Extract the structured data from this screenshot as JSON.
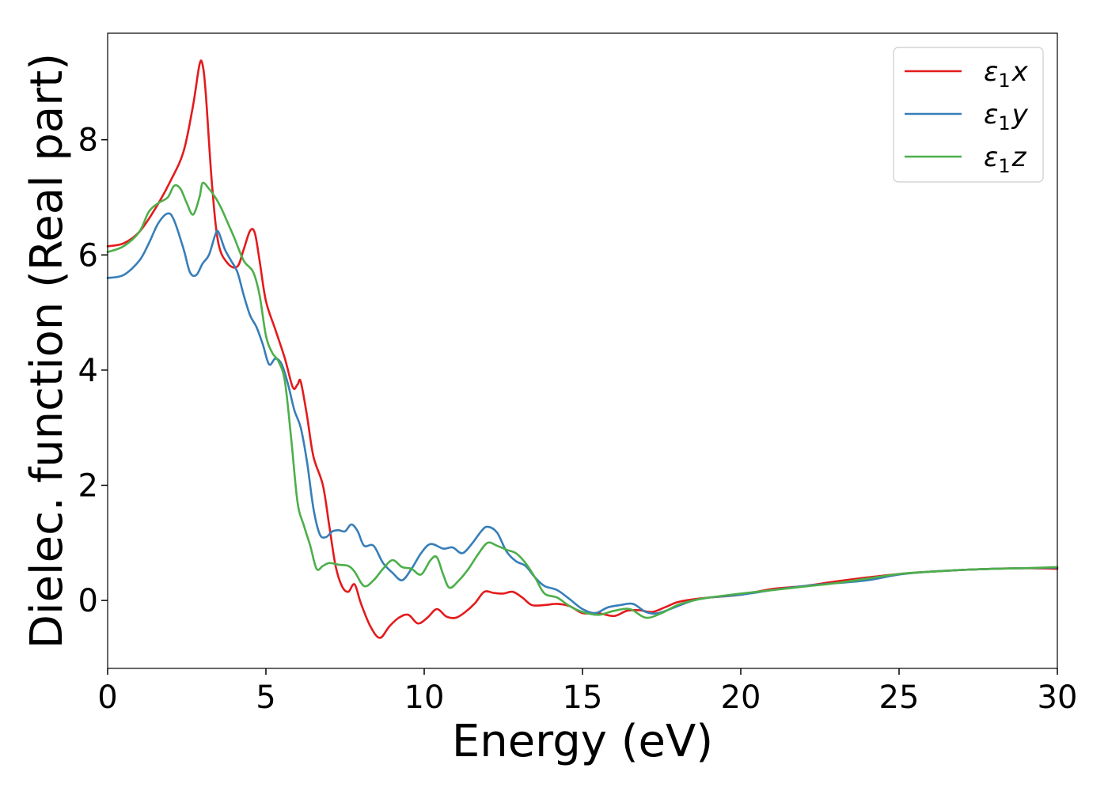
{
  "chart_data": {
    "type": "line",
    "xlabel": "Energy (eV)",
    "ylabel": "Dielec. function (Real part)",
    "xlim": [
      0,
      30
    ],
    "ylim": [
      -1.18,
      9.85
    ],
    "xticks": [
      0,
      5,
      10,
      15,
      20,
      25,
      30
    ],
    "yticks": [
      0,
      2,
      4,
      6,
      8
    ],
    "grid": false,
    "legend_position": "top-right",
    "series": [
      {
        "name": "ε1x",
        "legend_base": "ε",
        "legend_sub": "1",
        "legend_suffix": "x",
        "color": "#e41a1c",
        "points": [
          [
            0,
            6.15
          ],
          [
            0.5,
            6.2
          ],
          [
            1,
            6.4
          ],
          [
            1.5,
            6.8
          ],
          [
            2,
            7.3
          ],
          [
            2.4,
            7.8
          ],
          [
            2.7,
            8.6
          ],
          [
            2.9,
            9.3
          ],
          [
            3.0,
            9.3
          ],
          [
            3.1,
            8.8
          ],
          [
            3.3,
            7.2
          ],
          [
            3.5,
            6.2
          ],
          [
            3.8,
            5.85
          ],
          [
            4.1,
            5.8
          ],
          [
            4.3,
            6.1
          ],
          [
            4.5,
            6.42
          ],
          [
            4.65,
            6.38
          ],
          [
            4.8,
            5.9
          ],
          [
            5.0,
            5.2
          ],
          [
            5.3,
            4.7
          ],
          [
            5.6,
            4.2
          ],
          [
            5.85,
            3.7
          ],
          [
            6.0,
            3.75
          ],
          [
            6.1,
            3.8
          ],
          [
            6.3,
            3.2
          ],
          [
            6.5,
            2.5
          ],
          [
            6.8,
            2.0
          ],
          [
            7.0,
            1.3
          ],
          [
            7.2,
            0.6
          ],
          [
            7.4,
            0.25
          ],
          [
            7.6,
            0.15
          ],
          [
            7.8,
            0.28
          ],
          [
            8.0,
            -0.05
          ],
          [
            8.3,
            -0.45
          ],
          [
            8.6,
            -0.65
          ],
          [
            8.9,
            -0.45
          ],
          [
            9.2,
            -0.3
          ],
          [
            9.5,
            -0.25
          ],
          [
            9.8,
            -0.4
          ],
          [
            10.1,
            -0.3
          ],
          [
            10.4,
            -0.15
          ],
          [
            10.7,
            -0.28
          ],
          [
            11.0,
            -0.3
          ],
          [
            11.3,
            -0.2
          ],
          [
            11.6,
            -0.05
          ],
          [
            11.9,
            0.15
          ],
          [
            12.2,
            0.13
          ],
          [
            12.5,
            0.12
          ],
          [
            12.8,
            0.15
          ],
          [
            13.1,
            0.05
          ],
          [
            13.4,
            -0.08
          ],
          [
            13.8,
            -0.08
          ],
          [
            14.2,
            -0.06
          ],
          [
            14.6,
            -0.1
          ],
          [
            15.0,
            -0.22
          ],
          [
            15.5,
            -0.22
          ],
          [
            16.0,
            -0.27
          ],
          [
            16.4,
            -0.18
          ],
          [
            16.8,
            -0.17
          ],
          [
            17.2,
            -0.2
          ],
          [
            17.6,
            -0.12
          ],
          [
            18.0,
            -0.03
          ],
          [
            18.5,
            0.02
          ],
          [
            19,
            0.05
          ],
          [
            20,
            0.1
          ],
          [
            21,
            0.2
          ],
          [
            22,
            0.25
          ],
          [
            23,
            0.33
          ],
          [
            24,
            0.4
          ],
          [
            25,
            0.46
          ],
          [
            26,
            0.5
          ],
          [
            27,
            0.53
          ],
          [
            28,
            0.55
          ],
          [
            29,
            0.56
          ],
          [
            30,
            0.55
          ]
        ]
      },
      {
        "name": "ε1y",
        "legend_base": "ε",
        "legend_sub": "1",
        "legend_suffix": "y",
        "color": "#377eb8",
        "points": [
          [
            0,
            5.6
          ],
          [
            0.5,
            5.65
          ],
          [
            1,
            5.9
          ],
          [
            1.3,
            6.2
          ],
          [
            1.6,
            6.55
          ],
          [
            1.9,
            6.72
          ],
          [
            2.1,
            6.6
          ],
          [
            2.4,
            6.1
          ],
          [
            2.6,
            5.7
          ],
          [
            2.8,
            5.65
          ],
          [
            3.0,
            5.85
          ],
          [
            3.2,
            6.0
          ],
          [
            3.4,
            6.35
          ],
          [
            3.5,
            6.4
          ],
          [
            3.7,
            6.1
          ],
          [
            3.9,
            5.9
          ],
          [
            4.1,
            5.7
          ],
          [
            4.3,
            5.3
          ],
          [
            4.5,
            4.95
          ],
          [
            4.7,
            4.75
          ],
          [
            4.9,
            4.45
          ],
          [
            5.1,
            4.1
          ],
          [
            5.3,
            4.2
          ],
          [
            5.5,
            4.1
          ],
          [
            5.7,
            3.75
          ],
          [
            5.9,
            3.3
          ],
          [
            6.1,
            3.0
          ],
          [
            6.3,
            2.4
          ],
          [
            6.5,
            1.6
          ],
          [
            6.7,
            1.15
          ],
          [
            6.9,
            1.1
          ],
          [
            7.1,
            1.2
          ],
          [
            7.3,
            1.22
          ],
          [
            7.5,
            1.2
          ],
          [
            7.7,
            1.32
          ],
          [
            7.9,
            1.2
          ],
          [
            8.1,
            0.95
          ],
          [
            8.4,
            0.95
          ],
          [
            8.7,
            0.65
          ],
          [
            9.0,
            0.48
          ],
          [
            9.3,
            0.35
          ],
          [
            9.6,
            0.55
          ],
          [
            9.9,
            0.82
          ],
          [
            10.2,
            0.98
          ],
          [
            10.6,
            0.9
          ],
          [
            10.9,
            0.92
          ],
          [
            11.2,
            0.82
          ],
          [
            11.5,
            0.98
          ],
          [
            11.8,
            1.2
          ],
          [
            12.0,
            1.28
          ],
          [
            12.3,
            1.18
          ],
          [
            12.6,
            0.85
          ],
          [
            12.9,
            0.68
          ],
          [
            13.2,
            0.6
          ],
          [
            13.5,
            0.4
          ],
          [
            13.8,
            0.25
          ],
          [
            14.2,
            0.18
          ],
          [
            14.6,
            0.02
          ],
          [
            15.0,
            -0.15
          ],
          [
            15.4,
            -0.22
          ],
          [
            15.8,
            -0.12
          ],
          [
            16.2,
            -0.08
          ],
          [
            16.6,
            -0.06
          ],
          [
            17.0,
            -0.2
          ],
          [
            17.4,
            -0.22
          ],
          [
            18.0,
            -0.1
          ],
          [
            18.5,
            0.0
          ],
          [
            19,
            0.05
          ],
          [
            20,
            0.1
          ],
          [
            21,
            0.18
          ],
          [
            22,
            0.25
          ],
          [
            23,
            0.3
          ],
          [
            24,
            0.35
          ],
          [
            25,
            0.45
          ],
          [
            26,
            0.5
          ],
          [
            27,
            0.53
          ],
          [
            28,
            0.55
          ],
          [
            29,
            0.56
          ],
          [
            30,
            0.57
          ]
        ]
      },
      {
        "name": "ε1z",
        "legend_base": "ε",
        "legend_sub": "1",
        "legend_suffix": "z",
        "color": "#4daf4a",
        "points": [
          [
            0,
            6.05
          ],
          [
            0.5,
            6.15
          ],
          [
            1,
            6.4
          ],
          [
            1.3,
            6.75
          ],
          [
            1.6,
            6.9
          ],
          [
            1.9,
            7.0
          ],
          [
            2.1,
            7.2
          ],
          [
            2.3,
            7.15
          ],
          [
            2.5,
            6.9
          ],
          [
            2.7,
            6.7
          ],
          [
            2.9,
            7.0
          ],
          [
            3.0,
            7.25
          ],
          [
            3.2,
            7.15
          ],
          [
            3.4,
            7.0
          ],
          [
            3.6,
            6.8
          ],
          [
            3.8,
            6.55
          ],
          [
            4.0,
            6.3
          ],
          [
            4.3,
            5.9
          ],
          [
            4.6,
            5.7
          ],
          [
            4.8,
            5.3
          ],
          [
            5.0,
            4.6
          ],
          [
            5.2,
            4.3
          ],
          [
            5.4,
            4.15
          ],
          [
            5.6,
            3.8
          ],
          [
            5.8,
            2.8
          ],
          [
            6.0,
            1.7
          ],
          [
            6.2,
            1.3
          ],
          [
            6.4,
            0.95
          ],
          [
            6.6,
            0.55
          ],
          [
            6.8,
            0.6
          ],
          [
            7.0,
            0.65
          ],
          [
            7.3,
            0.62
          ],
          [
            7.6,
            0.6
          ],
          [
            7.8,
            0.5
          ],
          [
            8.1,
            0.25
          ],
          [
            8.4,
            0.35
          ],
          [
            8.7,
            0.55
          ],
          [
            9.0,
            0.7
          ],
          [
            9.3,
            0.58
          ],
          [
            9.6,
            0.55
          ],
          [
            9.9,
            0.45
          ],
          [
            10.2,
            0.7
          ],
          [
            10.4,
            0.75
          ],
          [
            10.6,
            0.45
          ],
          [
            10.8,
            0.22
          ],
          [
            11.1,
            0.35
          ],
          [
            11.4,
            0.55
          ],
          [
            11.7,
            0.8
          ],
          [
            12.0,
            1.0
          ],
          [
            12.3,
            0.95
          ],
          [
            12.6,
            0.88
          ],
          [
            12.9,
            0.82
          ],
          [
            13.2,
            0.65
          ],
          [
            13.5,
            0.4
          ],
          [
            13.8,
            0.12
          ],
          [
            14.2,
            0.05
          ],
          [
            14.6,
            -0.1
          ],
          [
            15.0,
            -0.2
          ],
          [
            15.5,
            -0.25
          ],
          [
            16.0,
            -0.18
          ],
          [
            16.5,
            -0.15
          ],
          [
            17.0,
            -0.3
          ],
          [
            17.5,
            -0.22
          ],
          [
            18.0,
            -0.08
          ],
          [
            18.5,
            0.0
          ],
          [
            19,
            0.05
          ],
          [
            20,
            0.12
          ],
          [
            21,
            0.18
          ],
          [
            22,
            0.24
          ],
          [
            23,
            0.3
          ],
          [
            24,
            0.38
          ],
          [
            25,
            0.46
          ],
          [
            26,
            0.5
          ],
          [
            27,
            0.53
          ],
          [
            28,
            0.55
          ],
          [
            29,
            0.56
          ],
          [
            30,
            0.58
          ]
        ]
      }
    ]
  }
}
